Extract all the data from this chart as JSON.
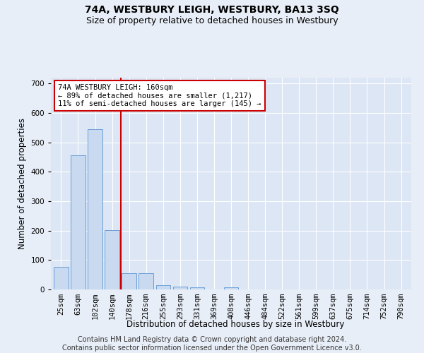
{
  "title": "74A, WESTBURY LEIGH, WESTBURY, BA13 3SQ",
  "subtitle": "Size of property relative to detached houses in Westbury",
  "xlabel": "Distribution of detached houses by size in Westbury",
  "ylabel": "Number of detached properties",
  "footer_line1": "Contains HM Land Registry data © Crown copyright and database right 2024.",
  "footer_line2": "Contains public sector information licensed under the Open Government Licence v3.0.",
  "categories": [
    "25sqm",
    "63sqm",
    "102sqm",
    "140sqm",
    "178sqm",
    "216sqm",
    "255sqm",
    "293sqm",
    "331sqm",
    "369sqm",
    "408sqm",
    "446sqm",
    "484sqm",
    "522sqm",
    "561sqm",
    "599sqm",
    "637sqm",
    "675sqm",
    "714sqm",
    "752sqm",
    "790sqm"
  ],
  "values": [
    78,
    455,
    545,
    202,
    55,
    55,
    14,
    9,
    8,
    0,
    8,
    0,
    0,
    0,
    0,
    0,
    0,
    0,
    0,
    0,
    0
  ],
  "bar_color": "#c9d9f0",
  "bar_edge_color": "#6a9fd8",
  "vline_x": 3.5,
  "vline_color": "#cc0000",
  "annotation_text": "74A WESTBURY LEIGH: 160sqm\n← 89% of detached houses are smaller (1,217)\n11% of semi-detached houses are larger (145) →",
  "annotation_box_color": "#ffffff",
  "annotation_box_edge": "#cc0000",
  "ylim": [
    0,
    720
  ],
  "yticks": [
    0,
    100,
    200,
    300,
    400,
    500,
    600,
    700
  ],
  "bg_color": "#e8eef7",
  "plot_bg_color": "#dce6f5",
  "grid_color": "#ffffff",
  "title_fontsize": 10,
  "subtitle_fontsize": 9,
  "label_fontsize": 8.5,
  "tick_fontsize": 7.5,
  "footer_fontsize": 7,
  "ann_fontsize": 7.5
}
